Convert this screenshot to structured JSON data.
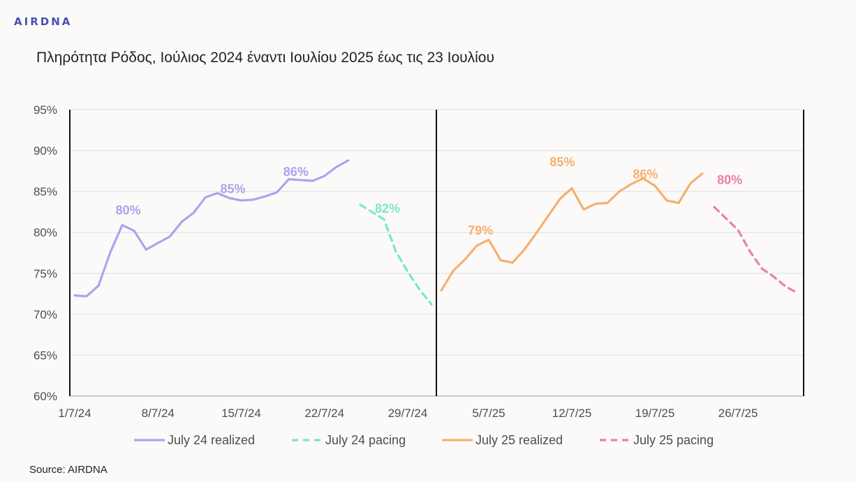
{
  "logo": "AIRDNA",
  "title": "Πληρότητα Ρόδος, Ιούλιος 2024 έναντι Ιουλίου 2025 έως τις 23 Ιουλίου",
  "source": "Source: AIRDNA",
  "chart_data": {
    "type": "line",
    "ylim": [
      60,
      95
    ],
    "yticks": [
      "60%",
      "65%",
      "70%",
      "75%",
      "80%",
      "85%",
      "90%",
      "95%"
    ],
    "grid": true,
    "legend_position": "bottom",
    "panels": [
      {
        "year": 2024,
        "xlim": [
          1,
          31
        ],
        "xtick_values": [
          1,
          8,
          15,
          22,
          29
        ],
        "xtick_labels": [
          "1/7/24",
          "8/7/24",
          "15/7/24",
          "22/7/24",
          "29/7/24"
        ]
      },
      {
        "year": 2025,
        "xlim": [
          1,
          31
        ],
        "xtick_values": [
          5,
          12,
          19,
          26
        ],
        "xtick_labels": [
          "5/7/25",
          "12/7/25",
          "19/7/25",
          "26/7/25"
        ]
      }
    ],
    "series": [
      {
        "name": "July 24 realized",
        "panel": 0,
        "color": "#a9a5ee",
        "dash": false,
        "x": [
          1,
          2,
          3,
          4,
          5,
          6,
          7,
          8,
          9,
          10,
          11,
          12,
          13,
          14,
          15,
          16,
          17,
          18,
          19,
          20,
          21,
          22,
          23,
          24
        ],
        "y": [
          72.3,
          72.2,
          73.5,
          77.6,
          80.9,
          80.2,
          77.9,
          78.7,
          79.5,
          81.3,
          82.4,
          84.3,
          84.8,
          84.2,
          83.9,
          84.0,
          84.4,
          84.9,
          86.5,
          86.4,
          86.3,
          86.9,
          88.0,
          88.8
        ]
      },
      {
        "name": "July 24 pacing",
        "panel": 0,
        "color": "#7ae8c4",
        "dash": true,
        "x": [
          25,
          26,
          27,
          28,
          29,
          30,
          31
        ],
        "y": [
          83.4,
          82.5,
          81.6,
          77.7,
          75.2,
          73.0,
          71.2
        ]
      },
      {
        "name": "July 25 realized",
        "panel": 1,
        "color": "#f6b06f",
        "dash": false,
        "x": [
          1,
          2,
          3,
          4,
          5,
          6,
          7,
          8,
          9,
          10,
          11,
          12,
          13,
          14,
          15,
          16,
          17,
          18,
          19,
          20,
          21,
          22,
          23
        ],
        "y": [
          72.9,
          75.3,
          76.7,
          78.4,
          79.1,
          76.6,
          76.3,
          77.9,
          79.9,
          82.0,
          84.1,
          85.4,
          82.8,
          83.5,
          83.6,
          85.0,
          85.9,
          86.6,
          85.7,
          83.9,
          83.6,
          86.0,
          87.2
        ]
      },
      {
        "name": "July 25 pacing",
        "panel": 1,
        "color": "#ec7fa6",
        "dash": true,
        "x": [
          24,
          25,
          26,
          27,
          28,
          29,
          30,
          31
        ],
        "y": [
          83.1,
          81.7,
          80.3,
          77.7,
          75.6,
          74.6,
          73.4,
          72.6
        ]
      }
    ],
    "annotations": [
      {
        "text": "80%",
        "panel": 0,
        "x": 5.5,
        "y": 82.2,
        "color": "#a9a5ee"
      },
      {
        "text": "85%",
        "panel": 0,
        "x": 14.3,
        "y": 84.8,
        "color": "#a9a5ee"
      },
      {
        "text": "86%",
        "panel": 0,
        "x": 19.6,
        "y": 86.9,
        "color": "#a9a5ee"
      },
      {
        "text": "82%",
        "panel": 0,
        "x": 27.3,
        "y": 82.4,
        "color": "#7ae8c4"
      },
      {
        "text": "79%",
        "panel": 1,
        "x": 4.3,
        "y": 79.7,
        "color": "#f6b06f"
      },
      {
        "text": "85%",
        "panel": 1,
        "x": 11.2,
        "y": 88.1,
        "color": "#f6b06f"
      },
      {
        "text": "86%",
        "panel": 1,
        "x": 18.2,
        "y": 86.6,
        "color": "#f6b06f"
      },
      {
        "text": "80%",
        "panel": 1,
        "x": 25.3,
        "y": 85.9,
        "color": "#ec7fa6"
      }
    ]
  }
}
